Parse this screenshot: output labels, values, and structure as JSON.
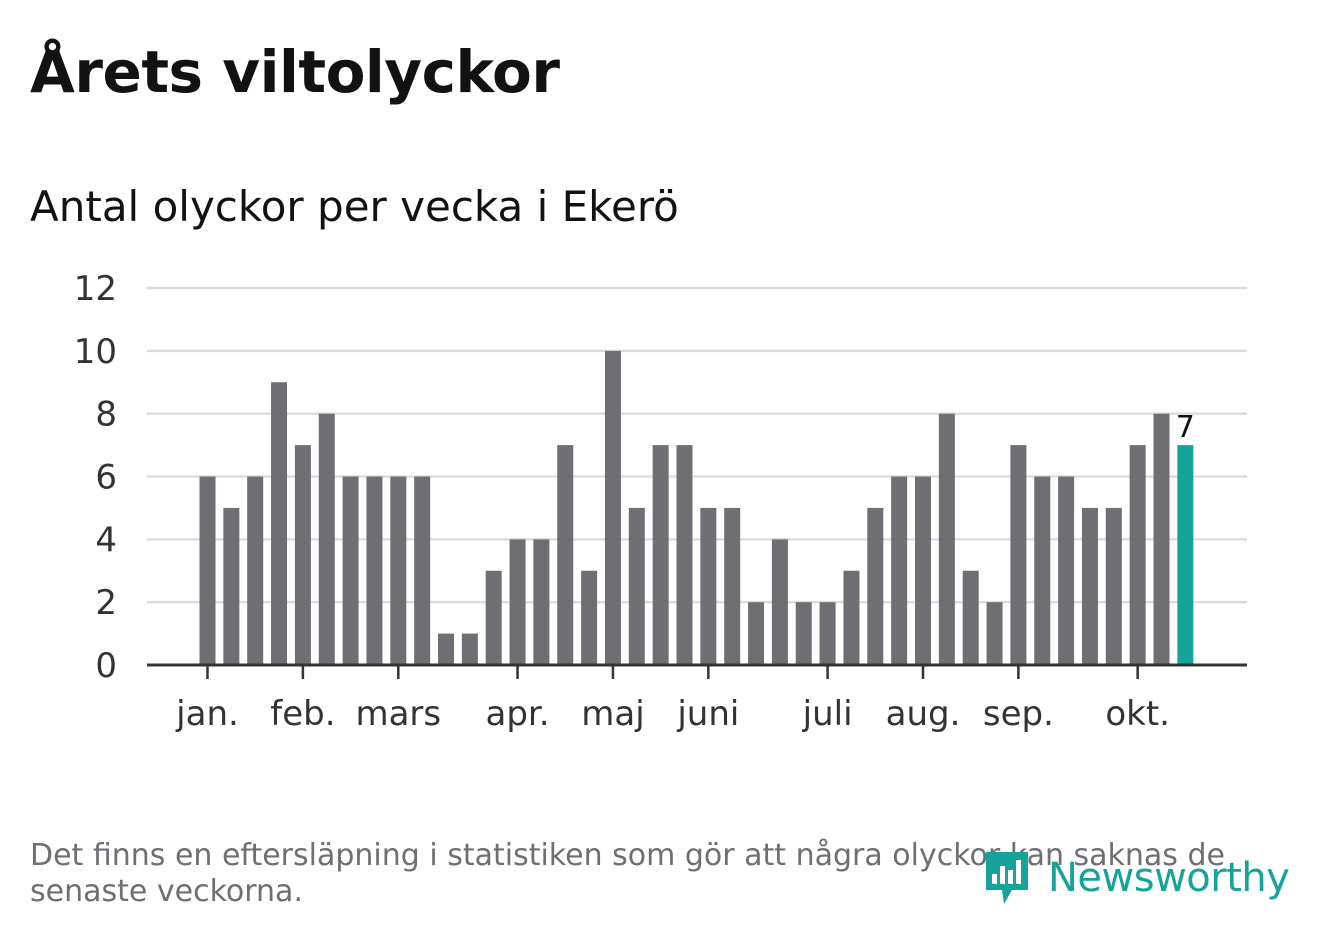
{
  "header": {
    "title": "Årets viltolyckor",
    "subtitle": "Antal olyckor per vecka i Ekerö"
  },
  "footer": {
    "note": "Det finns en eftersläpning i statistiken som gör att några olyckor kan saknas de senaste veckorna.",
    "logo_text": "Newsworthy",
    "logo_icon": "bar-chart-speech-bubble-icon"
  },
  "colors": {
    "bar": "#6f6e73",
    "highlight": "#16a39b",
    "grid": "#dddddd",
    "axis": "#333333"
  },
  "chart_data": {
    "type": "bar",
    "title": "Antal olyckor per vecka i Ekerö",
    "xlabel": "",
    "ylabel": "",
    "ylim": [
      0,
      12
    ],
    "yticks": [
      0,
      2,
      4,
      6,
      8,
      10,
      12
    ],
    "grid": true,
    "legend": "none",
    "values": [
      6,
      5,
      6,
      9,
      7,
      8,
      6,
      6,
      6,
      6,
      1,
      1,
      3,
      4,
      4,
      7,
      3,
      10,
      5,
      7,
      7,
      5,
      5,
      2,
      4,
      2,
      2,
      3,
      5,
      6,
      6,
      8,
      3,
      2,
      7,
      6,
      6,
      5,
      5,
      7,
      8,
      7
    ],
    "month_ticks": [
      {
        "label": "jan.",
        "bar": 0
      },
      {
        "label": "feb.",
        "bar": 4
      },
      {
        "label": "mars",
        "bar": 8
      },
      {
        "label": "apr.",
        "bar": 13
      },
      {
        "label": "maj",
        "bar": 17
      },
      {
        "label": "juni",
        "bar": 21
      },
      {
        "label": "juli",
        "bar": 26
      },
      {
        "label": "aug.",
        "bar": 30
      },
      {
        "label": "sep.",
        "bar": 34
      },
      {
        "label": "okt.",
        "bar": 39
      }
    ],
    "highlight_index": 41,
    "highlight_label": "7"
  }
}
